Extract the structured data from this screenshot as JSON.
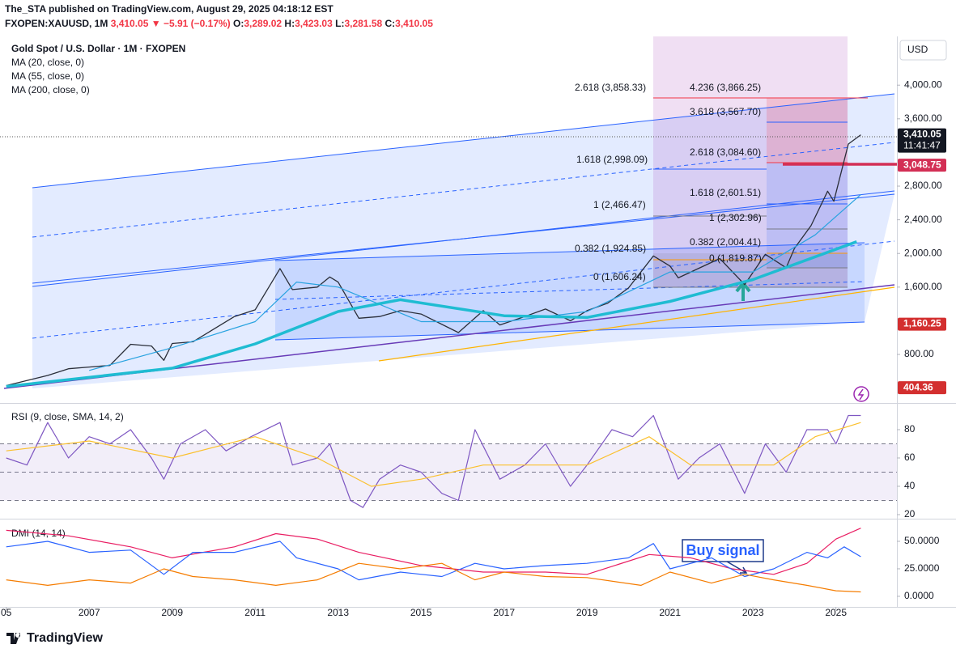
{
  "header": {
    "byline": "The_STA published on TradingView.com, August 29, 2025 04:18:12 EST",
    "quote": [
      "FXOPEN:XAUUSD, 1M ",
      "3,410.05 ▼ −5.91 (−0.17%)",
      " O:",
      "3,289.02",
      " H:",
      "3,423.03",
      " L:",
      "3,281.58",
      " C:",
      "3,410.05"
    ]
  },
  "chart_data": [
    {
      "type": "line",
      "title": "Gold Spot / U.S. Dollar · 1M · FXOPEN",
      "legend": [
        "MA (20, close, 0)",
        "MA (55, close, 0)",
        "MA (200, close, 0)"
      ],
      "currency": "USD",
      "xlim": [
        2004.85,
        2026.47
      ],
      "ylim": [
        233,
        4579
      ],
      "yticks": [
        {
          "value": 4000,
          "label": "4,000.00"
        },
        {
          "value": 3600,
          "label": "3,600.00"
        },
        {
          "value": 2800,
          "label": "2,800.00"
        },
        {
          "value": 2400,
          "label": "2,400.00"
        },
        {
          "value": 2000,
          "label": "2,000.00"
        },
        {
          "value": 1600,
          "label": "1,600.00"
        },
        {
          "value": 800,
          "label": "800.00"
        }
      ],
      "price_labels": [
        {
          "value": 3410.05,
          "label": "3,410.05",
          "color": "#131722"
        },
        {
          "value": 3048.75,
          "label": "3,048.75",
          "color": "#d32f55"
        },
        {
          "value": 1160.25,
          "label": "1,160.25",
          "color": "#d32f2f"
        },
        {
          "value": 404.36,
          "label": "404.36",
          "color": "#d32f2f"
        }
      ],
      "countdown": "11:41:47",
      "series": [
        {
          "color": "#2a2e39",
          "width": 1.3,
          "x": [
            2005.0,
            2006.0,
            2006.5,
            2007.0,
            2007.5,
            2008.0,
            2008.5,
            2008.8,
            2009.0,
            2009.5,
            2010.0,
            2010.5,
            2011.0,
            2011.6,
            2011.9,
            2012.5,
            2012.8,
            2013.0,
            2013.5,
            2014.0,
            2014.5,
            2015.0,
            2015.9,
            2016.5,
            2016.9,
            2017.5,
            2018.0,
            2018.6,
            2019.0,
            2019.5,
            2020.0,
            2020.6,
            2021.0,
            2021.2,
            2022.2,
            2022.8,
            2023.3,
            2023.8,
            2024.0,
            2024.4,
            2024.8,
            2024.95,
            2025.3,
            2025.6
          ],
          "values": [
            430,
            550,
            630,
            650,
            670,
            920,
            900,
            730,
            930,
            950,
            1100,
            1250,
            1330,
            1820,
            1570,
            1600,
            1720,
            1660,
            1230,
            1250,
            1320,
            1280,
            1060,
            1320,
            1150,
            1250,
            1340,
            1200,
            1320,
            1410,
            1590,
            1970,
            1850,
            1710,
            1940,
            1630,
            1990,
            1830,
            2060,
            2330,
            2740,
            2620,
            3300,
            3410.05
          ]
        },
        {
          "color": "#29a3e0",
          "width": 1.2,
          "x": [
            2007,
            2009,
            2011,
            2012,
            2013,
            2015,
            2017,
            2019,
            2021,
            2023,
            2024.5,
            2025.6
          ],
          "values": [
            610,
            880,
            1190,
            1660,
            1600,
            1190,
            1190,
            1310,
            1780,
            1780,
            2220,
            2700
          ]
        },
        {
          "color": "#1fbcd2",
          "width": 3.5,
          "x": [
            2005,
            2009,
            2011,
            2013,
            2014.5,
            2017,
            2019,
            2021,
            2023,
            2025.5
          ],
          "values": [
            420,
            637,
            925,
            1310,
            1450,
            1260,
            1240,
            1430,
            1690,
            2140
          ]
        }
      ]
    },
    {
      "type": "line",
      "title": "RSI (9, close, SMA, 14, 2)",
      "xlim": [
        2004.85,
        2026.47
      ],
      "ylim": [
        17.7,
        97.7
      ],
      "yticks": [
        80,
        60,
        40,
        20
      ],
      "levels": [
        70,
        50,
        30
      ],
      "series": [
        {
          "color": "#7e57c2",
          "width": 1.2,
          "x": [
            2005.0,
            2005.5,
            2006.0,
            2006.5,
            2007.0,
            2007.5,
            2008.0,
            2008.5,
            2008.8,
            2009.2,
            2009.8,
            2010.3,
            2010.9,
            2011.6,
            2011.9,
            2012.5,
            2012.8,
            2013.3,
            2013.6,
            2014.0,
            2014.5,
            2015.0,
            2015.5,
            2015.9,
            2016.3,
            2016.9,
            2017.5,
            2018.0,
            2018.6,
            2019.0,
            2019.6,
            2020.1,
            2020.6,
            2021.2,
            2021.7,
            2022.2,
            2022.8,
            2023.3,
            2023.8,
            2024.3,
            2024.8,
            2025.0,
            2025.3,
            2025.6
          ],
          "values": [
            60,
            55,
            85,
            60,
            75,
            70,
            80,
            60,
            45,
            70,
            80,
            65,
            75,
            85,
            55,
            60,
            70,
            30,
            25,
            45,
            55,
            50,
            35,
            30,
            80,
            45,
            55,
            70,
            40,
            55,
            80,
            75,
            90,
            45,
            60,
            70,
            35,
            70,
            50,
            80,
            80,
            70,
            90,
            90
          ]
        },
        {
          "color": "#fbc02d",
          "width": 1.2,
          "x": [
            2005,
            2007,
            2009,
            2011,
            2012.5,
            2013.8,
            2015,
            2016.5,
            2018,
            2019,
            2020.5,
            2021.5,
            2022.5,
            2023.5,
            2024.5,
            2025.6
          ],
          "values": [
            65,
            72,
            60,
            75,
            60,
            40,
            45,
            55,
            55,
            55,
            75,
            55,
            55,
            55,
            75,
            85
          ]
        }
      ]
    },
    {
      "type": "line",
      "title": "DMI (14, 14)",
      "xlim": [
        2004.85,
        2026.47
      ],
      "ylim": [
        -9.6,
        69.1
      ],
      "yticks": [
        {
          "value": 50,
          "label": "50.0000"
        },
        {
          "value": 25,
          "label": "25.0000"
        },
        {
          "value": 0,
          "label": "0.0000"
        }
      ],
      "xticks": [
        {
          "value": 2005,
          "label": "05"
        },
        2007,
        2009,
        2011,
        2013,
        2015,
        2017,
        2019,
        2021,
        2023,
        2025
      ],
      "annotation": "Buy signal",
      "series": [
        {
          "color": "#e91e63",
          "width": 1.2,
          "x": [
            2005,
            2006.5,
            2008,
            2009,
            2010.5,
            2011.5,
            2012.5,
            2013.5,
            2015,
            2016.5,
            2018,
            2019,
            2020.5,
            2021.5,
            2022.5,
            2023.5,
            2024.3,
            2025,
            2025.6
          ],
          "values": [
            60,
            55,
            45,
            35,
            45,
            57,
            52,
            40,
            28,
            22,
            22,
            20,
            38,
            35,
            25,
            20,
            30,
            52,
            62
          ]
        },
        {
          "color": "#2962ff",
          "width": 1.2,
          "x": [
            2005,
            2006,
            2007,
            2008,
            2008.8,
            2009.5,
            2010.5,
            2011.6,
            2012,
            2013,
            2013.5,
            2014.5,
            2015.5,
            2016.3,
            2017,
            2018,
            2019,
            2020,
            2020.6,
            2021,
            2022,
            2022.8,
            2023.5,
            2024.3,
            2024.8,
            2025.2,
            2025.6
          ],
          "values": [
            45,
            50,
            40,
            42,
            20,
            40,
            40,
            50,
            35,
            25,
            15,
            22,
            18,
            30,
            25,
            28,
            30,
            35,
            48,
            25,
            35,
            18,
            25,
            40,
            35,
            45,
            36
          ]
        },
        {
          "color": "#f57c00",
          "width": 1.2,
          "x": [
            2005,
            2006,
            2007,
            2008,
            2008.8,
            2009.5,
            2010.5,
            2011.5,
            2012.5,
            2013.5,
            2014.5,
            2015.5,
            2016.3,
            2017,
            2018,
            2019,
            2020.3,
            2021,
            2022,
            2022.8,
            2023.5,
            2024.3,
            2025,
            2025.6
          ],
          "values": [
            15,
            10,
            15,
            12,
            25,
            18,
            15,
            10,
            15,
            30,
            25,
            30,
            15,
            22,
            18,
            17,
            10,
            22,
            12,
            20,
            15,
            10,
            5,
            4
          ]
        }
      ]
    }
  ],
  "fib_labels": [
    {
      "label": "2.618 (3,858.33)",
      "color": "#f23645"
    },
    {
      "label": "4.236 (3,866.25)",
      "color": "#f23645"
    },
    {
      "label": "3.618 (3,567.70)",
      "color": "#2962ff"
    },
    {
      "label": "2.618 (3,084.60)",
      "color": "#f23645"
    },
    {
      "label": "1.618 (2,998.09)",
      "color": "#2962ff"
    },
    {
      "label": "1.618 (2,601.51)",
      "color": "#2962ff"
    },
    {
      "label": "1 (2,466.47)",
      "color": "#787b86"
    },
    {
      "label": "1 (2,302.96)",
      "color": "#787b86"
    },
    {
      "label": "0.382 (1,924.85)",
      "color": "#ff9800"
    },
    {
      "label": "0.382 (2,004.41)",
      "color": "#ff9800"
    },
    {
      "label": "0 (1,819.87)",
      "color": "#787b86"
    },
    {
      "label": "0 (1,606.24)",
      "color": "#787b86"
    }
  ],
  "footer": {
    "brand": "TradingView"
  }
}
